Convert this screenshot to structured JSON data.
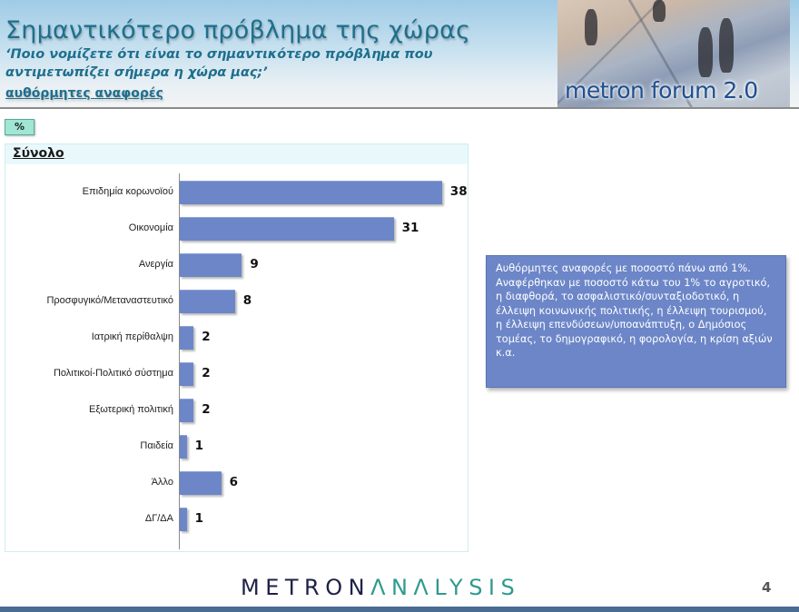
{
  "header": {
    "title": "Σημαντικότερο πρόβλημα της χώρας",
    "question": "‘Ποιο νομίζετε ότι  είναι το σημαντικότερο πρόβλημα που αντιμετωπίζει σήμερα η χώρα μας;’",
    "response_type": "αυθόρμητες αναφορές",
    "logo_text": "metron forum 2.0"
  },
  "unit_badge": "%",
  "panel": {
    "title": "Σύνολο"
  },
  "chart_data": {
    "type": "bar",
    "orientation": "horizontal",
    "title": "Σημαντικότερο πρόβλημα της χώρας",
    "subtitle": "Σύνολο",
    "xlabel": "",
    "ylabel": "",
    "unit": "%",
    "categories": [
      "Επιδημία κορωνοϊού",
      "Οικονομία",
      "Ανεργία",
      "Προσφυγικό/Μεταναστευτικό",
      "Ιατρική περίθαλψη",
      "Πολιτικοί-Πολιτικό σύστημα",
      "Εξωτερική πολιτική",
      "Παιδεία",
      "Άλλο",
      "ΔΓ/ΔΑ"
    ],
    "values": [
      38,
      31,
      9,
      8,
      2,
      2,
      2,
      1,
      6,
      1
    ],
    "xlim": [
      0,
      40
    ],
    "grid": false,
    "legend": null,
    "bar_color": "#6c86c8"
  },
  "note": "Αυθόρμητες αναφορές με ποσοστό πάνω από 1%. Αναφέρθηκαν με ποσοστό κάτω του 1% το αγροτικό, η διαφθορά, το ασφαλιστικό/συνταξιοδοτικό, η έλλειψη κοινωνικής πολιτικής, η έλλειψη τουρισμού, η έλλειψη επενδύσεων/υποανάπτυξη, ο Δημόσιος τομέας, το δημογραφικό, η φορολογία, η κρίση αξιών κ.α.",
  "footer": {
    "brand_part1": "METRON",
    "brand_part2": "ΛNΛLYSIS",
    "page_number": "4"
  },
  "colors": {
    "title": "#1e6f8d",
    "bar": "#6c86c8",
    "brand_dark": "#1d2146",
    "brand_teal": "#2f9a8c",
    "footer_bar": "#4a6b92"
  }
}
